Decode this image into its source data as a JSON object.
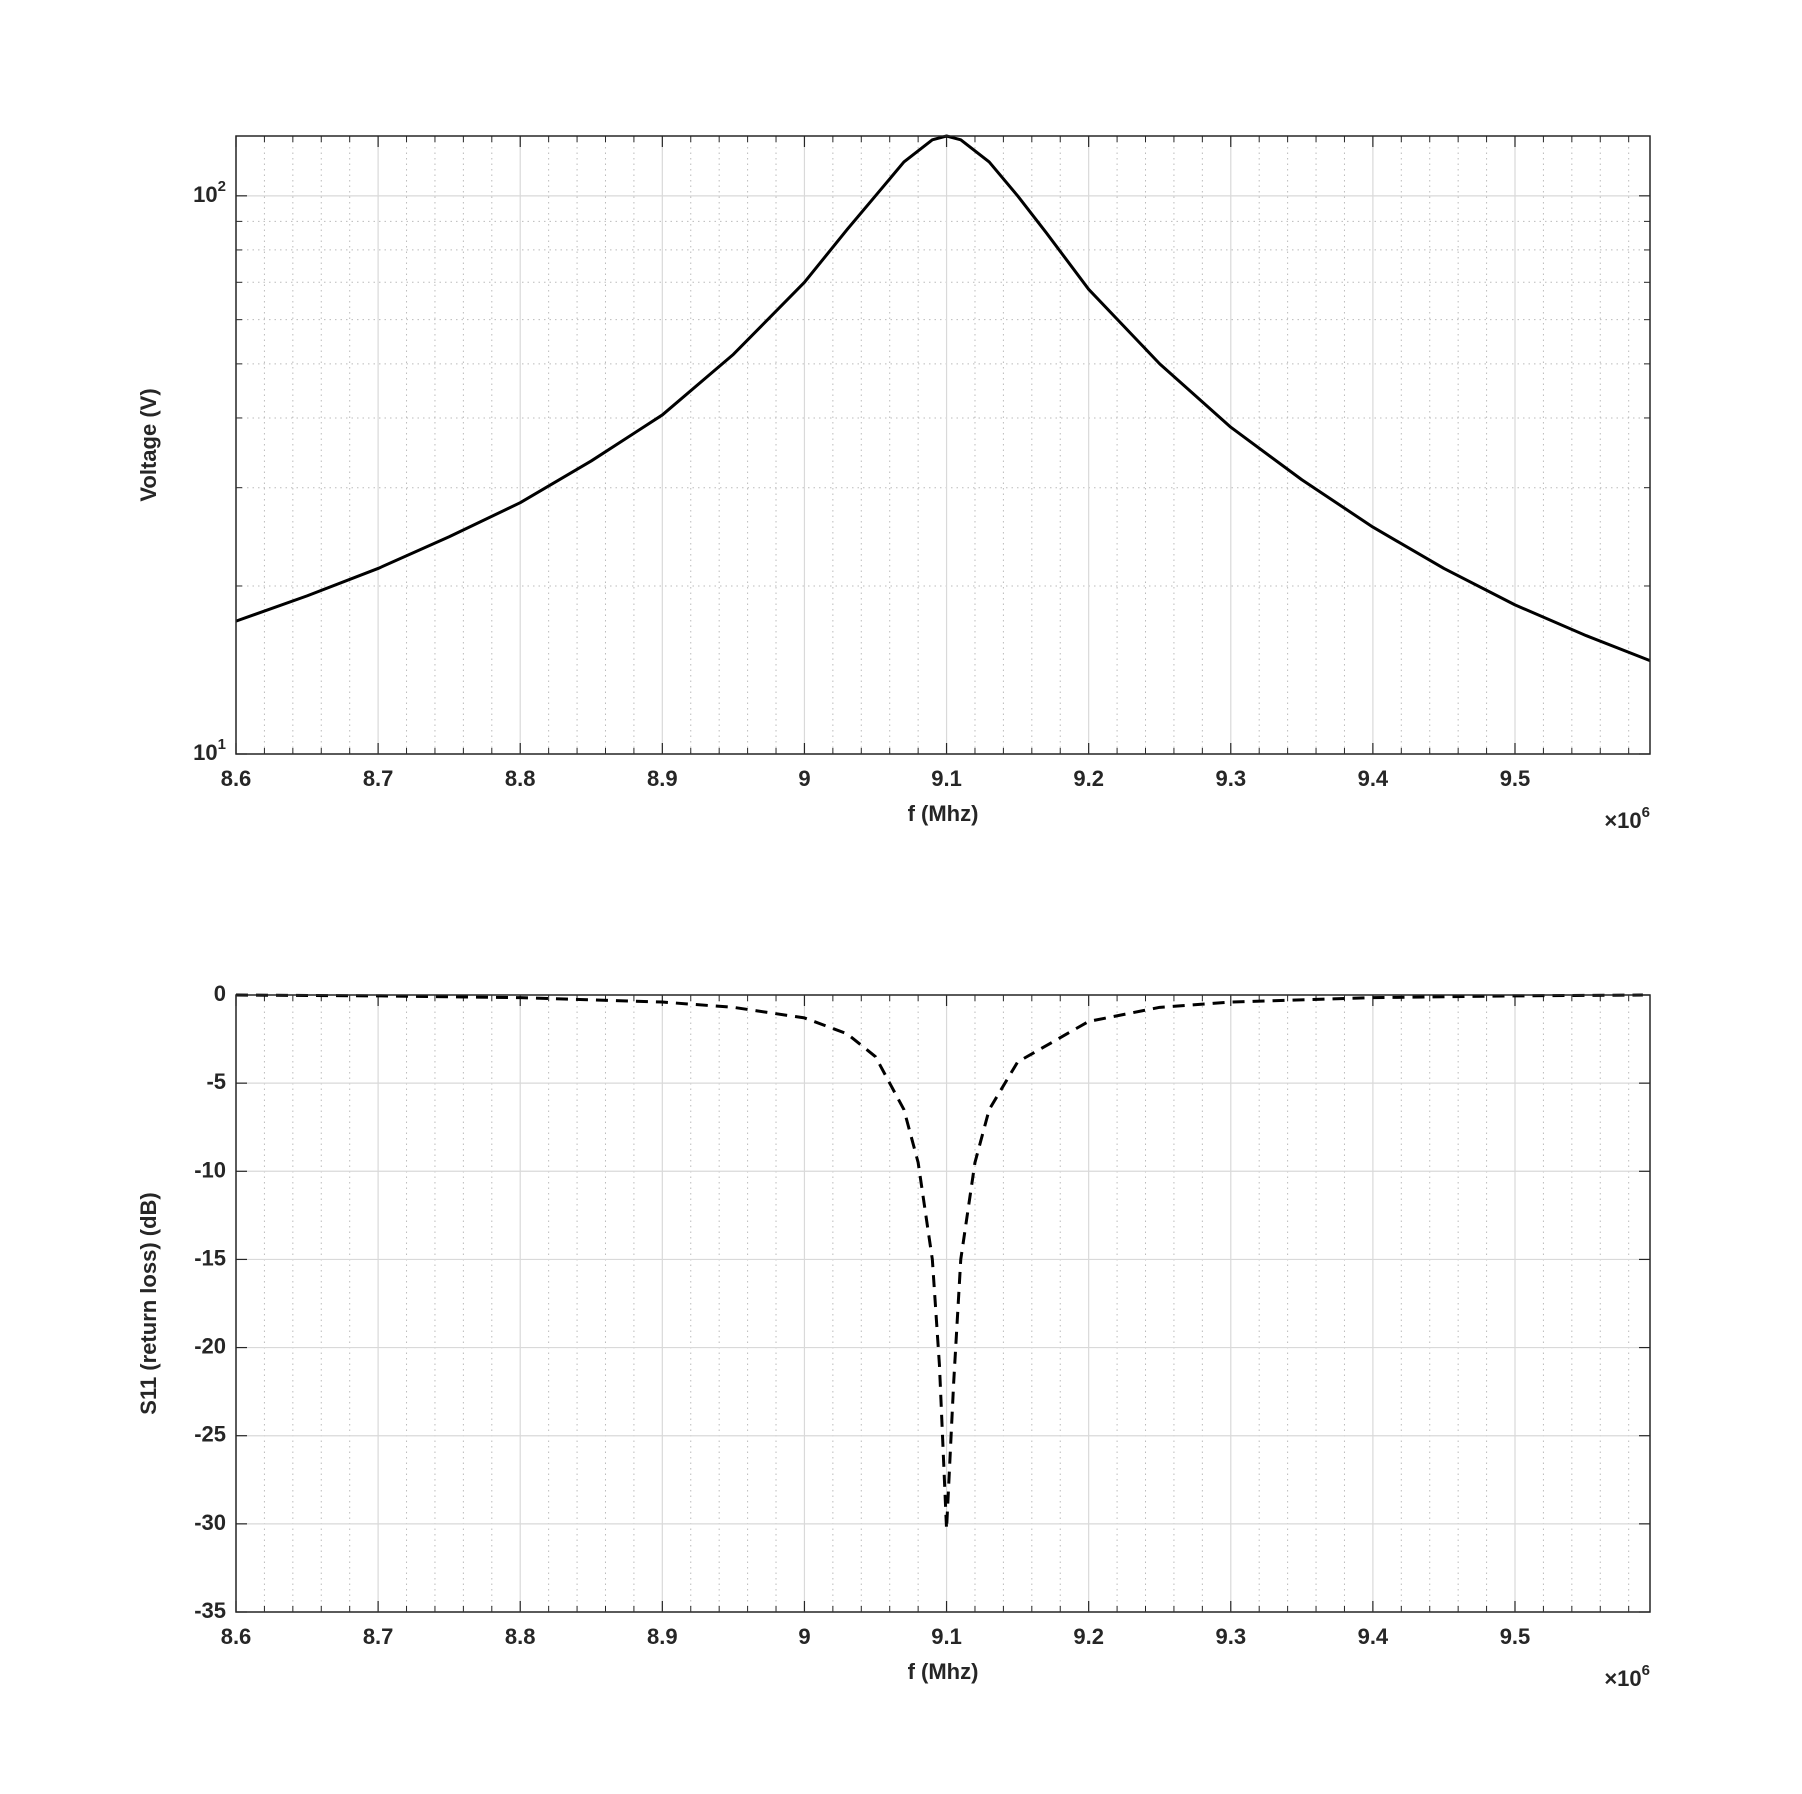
{
  "chart_data": [
    {
      "type": "line",
      "xlabel": "f (Mhz)",
      "ylabel": "Voltage (V)",
      "x_multiplier": "×10",
      "x_multiplier_exponent": "6",
      "log_y": true,
      "grid": true,
      "minor_grid": true,
      "xlim": [
        8600000,
        9595000
      ],
      "xticks": [
        {
          "value": 8600000,
          "label": "8.6"
        },
        {
          "value": 8700000,
          "label": "8.7"
        },
        {
          "value": 8800000,
          "label": "8.8"
        },
        {
          "value": 8900000,
          "label": "8.9"
        },
        {
          "value": 9000000,
          "label": "9"
        },
        {
          "value": 9100000,
          "label": "9.1"
        },
        {
          "value": 9200000,
          "label": "9.2"
        },
        {
          "value": 9300000,
          "label": "9.3"
        },
        {
          "value": 9400000,
          "label": "9.4"
        },
        {
          "value": 9500000,
          "label": "9.5"
        }
      ],
      "ylim": [
        10,
        128
      ],
      "yticks": [
        {
          "value": 10,
          "label": "10",
          "exponent": "1"
        },
        {
          "value": 100,
          "label": "10",
          "exponent": "2"
        }
      ],
      "x": [
        8600000,
        8650000,
        8700000,
        8750000,
        8800000,
        8850000,
        8900000,
        8950000,
        9000000,
        9030000,
        9050000,
        9070000,
        9090000,
        9100000,
        9110000,
        9130000,
        9150000,
        9170000,
        9200000,
        9250000,
        9300000,
        9350000,
        9400000,
        9450000,
        9500000,
        9550000,
        9595000
      ],
      "series": [
        {
          "color": "#000000",
          "line_style": "solid",
          "values": [
            17.3,
            19.2,
            21.5,
            24.5,
            28.2,
            33.5,
            40.5,
            52,
            70,
            87,
            100,
            115,
            126,
            128,
            126,
            115,
            100,
            86,
            68,
            50,
            38.5,
            31,
            25.5,
            21.5,
            18.5,
            16.3,
            14.7
          ]
        }
      ]
    },
    {
      "type": "line",
      "xlabel": "f (Mhz)",
      "ylabel": "S11 (return loss) (dB)",
      "x_multiplier": "×10",
      "x_multiplier_exponent": "6",
      "log_y": false,
      "grid": true,
      "minor_grid": true,
      "xlim": [
        8600000,
        9595000
      ],
      "xticks": [
        {
          "value": 8600000,
          "label": "8.6"
        },
        {
          "value": 8700000,
          "label": "8.7"
        },
        {
          "value": 8800000,
          "label": "8.8"
        },
        {
          "value": 8900000,
          "label": "8.9"
        },
        {
          "value": 9000000,
          "label": "9"
        },
        {
          "value": 9100000,
          "label": "9.1"
        },
        {
          "value": 9200000,
          "label": "9.2"
        },
        {
          "value": 9300000,
          "label": "9.3"
        },
        {
          "value": 9400000,
          "label": "9.4"
        },
        {
          "value": 9500000,
          "label": "9.5"
        }
      ],
      "ylim": [
        -35,
        0
      ],
      "yticks": [
        0,
        -5,
        -10,
        -15,
        -20,
        -25,
        -30,
        -35
      ],
      "x": [
        8600000,
        8700000,
        8800000,
        8900000,
        8950000,
        9000000,
        9030000,
        9050000,
        9070000,
        9080000,
        9090000,
        9095000,
        9100000,
        9105000,
        9110000,
        9120000,
        9130000,
        9150000,
        9200000,
        9250000,
        9300000,
        9400000,
        9500000,
        9590000
      ],
      "series": [
        {
          "color": "#000000",
          "line_style": "dashed",
          "values": [
            0,
            -0.05,
            -0.15,
            -0.4,
            -0.7,
            -1.3,
            -2.2,
            -3.5,
            -6.5,
            -9.5,
            -15,
            -21,
            -30.3,
            -22,
            -15,
            -9.5,
            -6.5,
            -3.8,
            -1.5,
            -0.7,
            -0.4,
            -0.15,
            -0.05,
            0
          ]
        }
      ]
    }
  ]
}
